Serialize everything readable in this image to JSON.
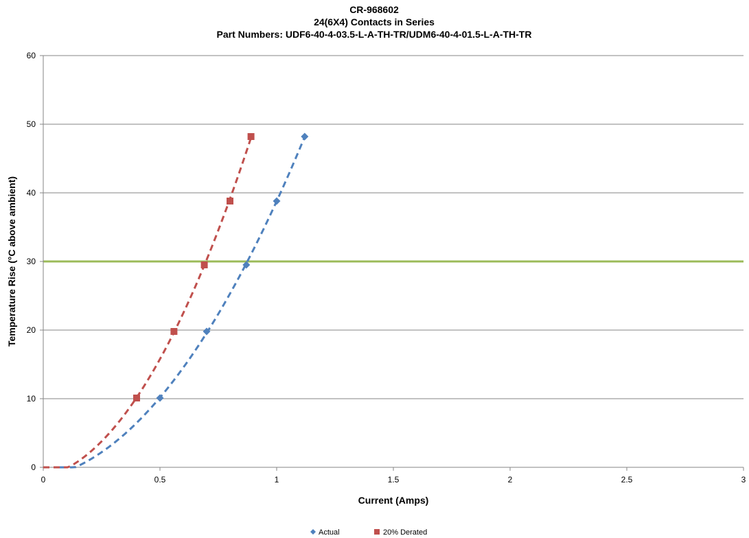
{
  "chart_data": {
    "type": "scatter",
    "title": "CR-968602",
    "subtitle": "24(6X4) Contacts in Series",
    "subtitle2": "Part Numbers: UDF6-40-4-03.5-L-A-TH-TR/UDM6-40-4-01.5-L-A-TH-TR",
    "xlabel": "Current (Amps)",
    "ylabel": "Temperature Rise (°C above ambient)",
    "xlim": [
      0,
      3
    ],
    "ylim": [
      0,
      60
    ],
    "x_ticks": [
      "0",
      "0.5",
      "1",
      "1.5",
      "2",
      "2.5",
      "3"
    ],
    "y_ticks": [
      "0",
      "10",
      "20",
      "30",
      "40",
      "50",
      "60"
    ],
    "grid": "horizontal",
    "legend_position": "bottom",
    "reference_line": {
      "y": 30,
      "color": "#9bbb59"
    },
    "series": [
      {
        "name": "Actual",
        "color": "#4f81bd",
        "marker": "diamond",
        "x": [
          0.5,
          0.7,
          0.87,
          1.0,
          1.12
        ],
        "y": [
          10.1,
          19.8,
          29.5,
          38.8,
          48.2
        ],
        "trendline": "dashed",
        "trend_x_start": 0.07
      },
      {
        "name": "20% Derated",
        "color": "#c0504d",
        "marker": "square",
        "x": [
          0.4,
          0.56,
          0.69,
          0.8,
          0.89
        ],
        "y": [
          10.1,
          19.8,
          29.5,
          38.8,
          48.2
        ],
        "trendline": "dashed",
        "trend_x_start": 0.0
      }
    ]
  }
}
